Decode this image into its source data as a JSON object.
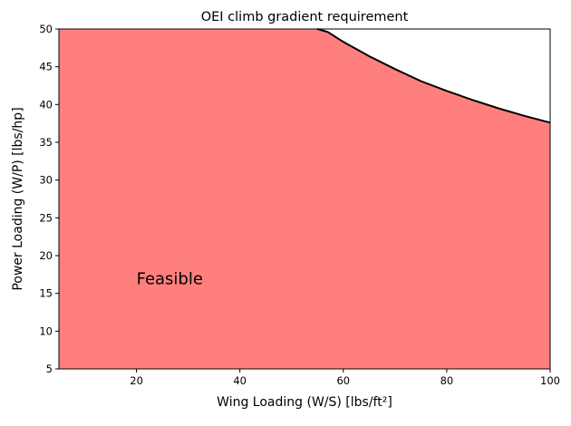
{
  "chart_data": {
    "type": "area",
    "title": "OEI climb gradient requirement",
    "xlabel": "Wing Loading (W/S) [lbs/ft²]",
    "ylabel": "Power Loading (W/P) [lbs/hp]",
    "xlim": [
      5,
      100
    ],
    "ylim": [
      5,
      50
    ],
    "xticks": [
      20,
      40,
      60,
      80,
      100
    ],
    "yticks": [
      5,
      10,
      15,
      20,
      25,
      30,
      35,
      40,
      45,
      50
    ],
    "series": [
      {
        "x": [
          5,
          55,
          57,
          60,
          65,
          70,
          75,
          80,
          85,
          90,
          95,
          100
        ],
        "y": [
          50,
          50,
          49.6,
          48.3,
          46.4,
          44.7,
          43.1,
          41.8,
          40.6,
          39.5,
          38.5,
          37.6
        ]
      }
    ],
    "annotation": "Feasible",
    "fill_color": "#ff7f7f",
    "line_color": "#000000",
    "grid": false
  }
}
